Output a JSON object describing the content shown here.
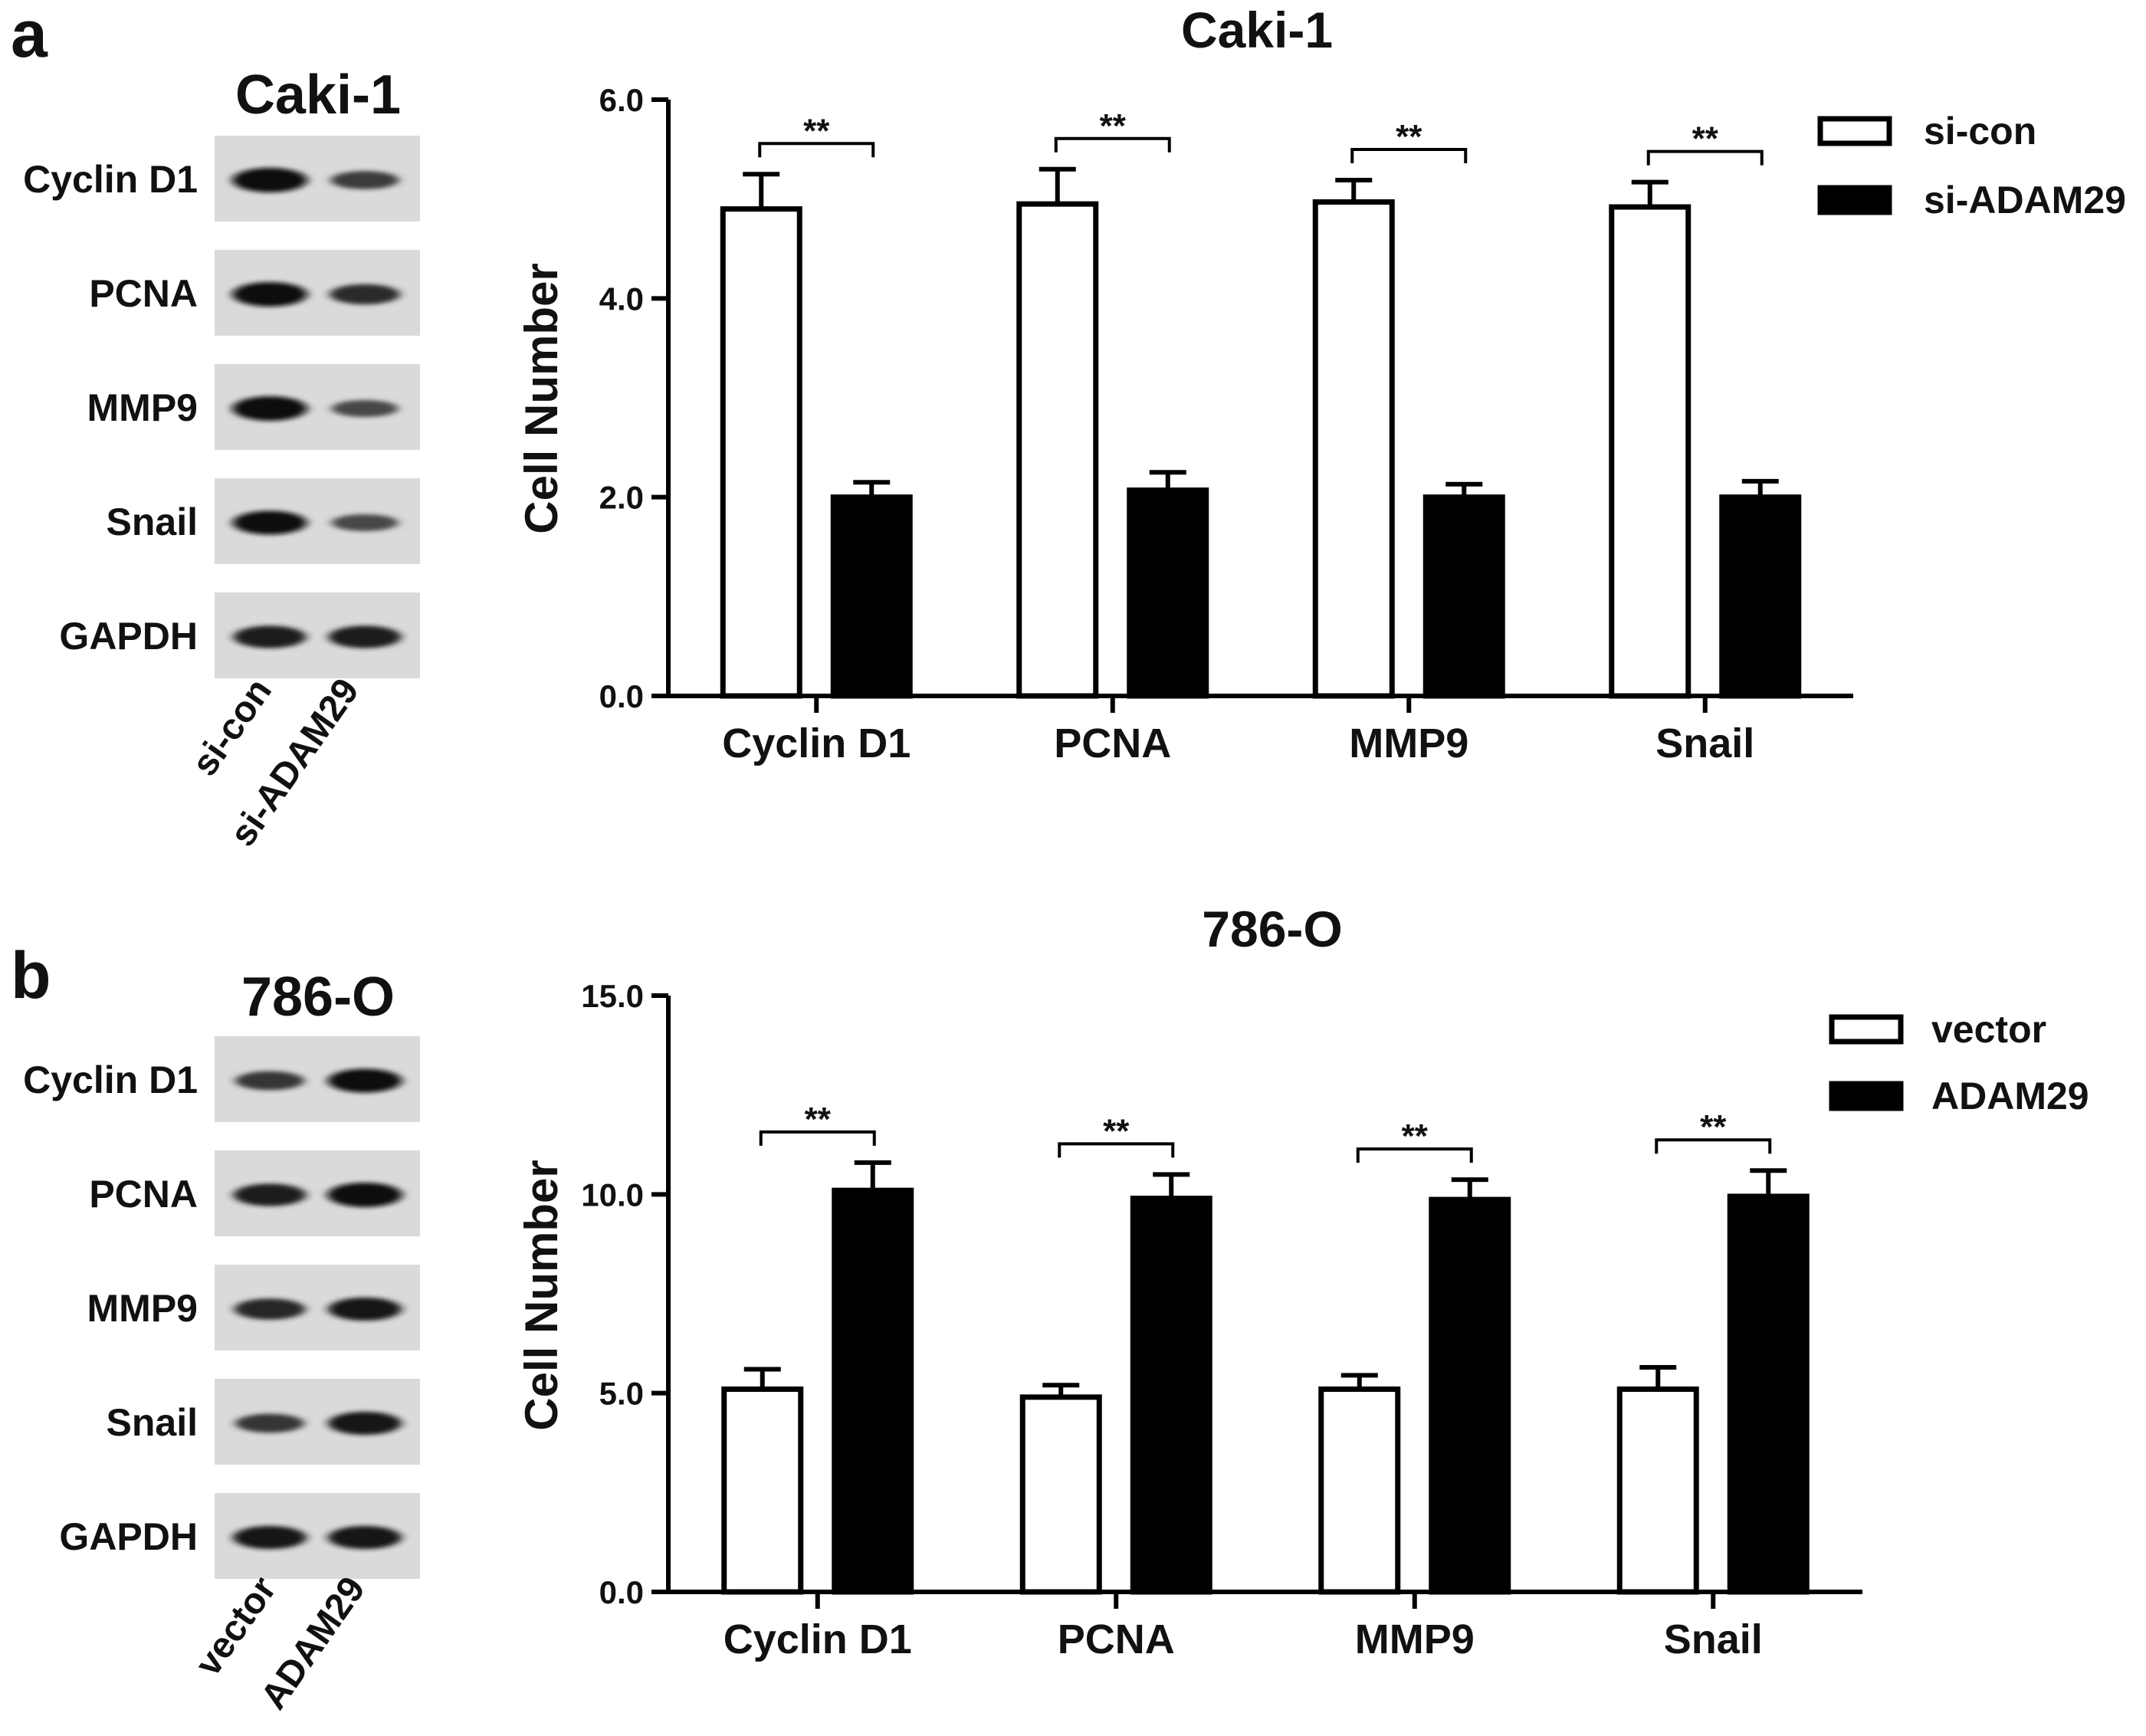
{
  "panels": [
    {
      "letter": "a",
      "blot": {
        "title": "Caki-1",
        "rows": [
          {
            "label": "Cyclin D1",
            "intensity": [
              1.0,
              0.55
            ]
          },
          {
            "label": "PCNA",
            "intensity": [
              1.0,
              0.7
            ]
          },
          {
            "label": "MMP9",
            "intensity": [
              1.0,
              0.45
            ]
          },
          {
            "label": "Snail",
            "intensity": [
              0.95,
              0.45
            ]
          },
          {
            "label": "GAPDH",
            "intensity": [
              0.85,
              0.85
            ]
          }
        ],
        "lanes": [
          "si-con",
          "si-ADAM29"
        ]
      },
      "chart": {
        "type": "bar",
        "title": "Caki-1",
        "ylabel": "Cell Number",
        "ylim": [
          0,
          6
        ],
        "yticks": [
          0,
          2,
          4,
          6
        ],
        "ytick_labels": [
          "0.0",
          "2.0",
          "4.0",
          "6.0"
        ],
        "categories": [
          "Cyclin D1",
          "PCNA",
          "MMP9",
          "Snail"
        ],
        "series": [
          {
            "name": "si-con",
            "values": [
              4.9,
              4.95,
              4.97,
              4.92
            ],
            "errors": [
              0.35,
              0.35,
              0.22,
              0.25
            ],
            "fill": "#ffffff"
          },
          {
            "name": "si-ADAM29",
            "values": [
              2.0,
              2.07,
              2.0,
              2.0
            ],
            "errors": [
              0.15,
              0.18,
              0.13,
              0.16
            ],
            "fill": "#000000"
          }
        ],
        "significance": [
          "**",
          "**",
          "**",
          "**"
        ],
        "legend_position": "top-right"
      }
    },
    {
      "letter": "b",
      "blot": {
        "title": "786-O",
        "rows": [
          {
            "label": "Cyclin D1",
            "intensity": [
              0.6,
              0.95
            ]
          },
          {
            "label": "PCNA",
            "intensity": [
              0.85,
              1.0
            ]
          },
          {
            "label": "MMP9",
            "intensity": [
              0.75,
              0.9
            ]
          },
          {
            "label": "Snail",
            "intensity": [
              0.6,
              0.9
            ]
          },
          {
            "label": "GAPDH",
            "intensity": [
              0.9,
              0.9
            ]
          }
        ],
        "lanes": [
          "vector",
          "ADAM29"
        ]
      },
      "chart": {
        "type": "bar",
        "title": "786-O",
        "ylabel": "Cell Number",
        "ylim": [
          0,
          15
        ],
        "yticks": [
          0,
          5,
          10,
          15
        ],
        "ytick_labels": [
          "0.0",
          "5.0",
          "10.0",
          "15.0"
        ],
        "categories": [
          "Cyclin D1",
          "PCNA",
          "MMP9",
          "Snail"
        ],
        "series": [
          {
            "name": "vector",
            "values": [
              5.1,
              4.9,
              5.1,
              5.1
            ],
            "errors": [
              0.5,
              0.3,
              0.35,
              0.55
            ],
            "fill": "#ffffff"
          },
          {
            "name": "ADAM29",
            "values": [
              10.1,
              9.9,
              9.87,
              9.95
            ],
            "errors": [
              0.7,
              0.6,
              0.5,
              0.65
            ],
            "fill": "#000000"
          }
        ],
        "significance": [
          "**",
          "**",
          "**",
          "**"
        ],
        "legend_position": "top-right"
      }
    }
  ]
}
